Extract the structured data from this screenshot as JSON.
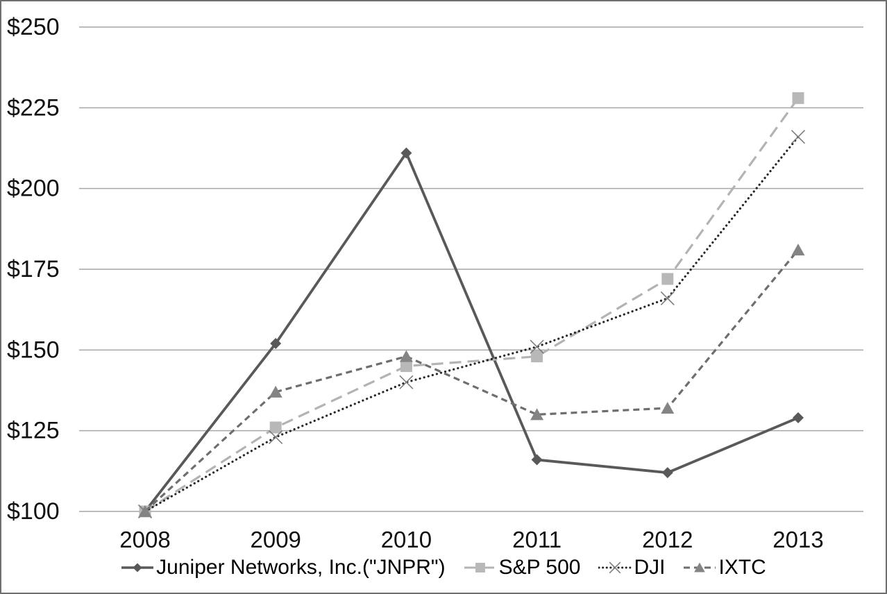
{
  "chart_data": {
    "type": "line",
    "title": "",
    "xlabel": "",
    "ylabel": "",
    "x_categories": [
      "2008",
      "2009",
      "2010",
      "2011",
      "2012",
      "2013"
    ],
    "ylim": [
      100,
      250
    ],
    "y_ticks": [
      100,
      125,
      150,
      175,
      200,
      225,
      250
    ],
    "y_tick_labels": [
      "$100",
      "$125",
      "$150",
      "$175",
      "$200",
      "$225",
      "$250"
    ],
    "grid": true,
    "legend_position": "bottom",
    "series": [
      {
        "name": "Juniper Networks, Inc.(\"JNPR\")",
        "slug": "jnpr",
        "values": [
          100,
          152,
          211,
          116,
          112,
          129
        ],
        "color": "#595959",
        "line_style": "solid",
        "marker": "diamond",
        "marker_color": "#595959"
      },
      {
        "name": "S&P 500",
        "slug": "sp500",
        "values": [
          100,
          126,
          145,
          148,
          172,
          228
        ],
        "color": "#b3b3b3",
        "line_style": "long-dash",
        "marker": "square",
        "marker_color": "#b8b8b8"
      },
      {
        "name": "DJI",
        "slug": "dji",
        "values": [
          100,
          123,
          140,
          151,
          166,
          216
        ],
        "color": "#262626",
        "line_style": "dotted",
        "marker": "x",
        "marker_color": "#7d7d7d"
      },
      {
        "name": "IXTC",
        "slug": "ixtc",
        "values": [
          100,
          137,
          148,
          130,
          132,
          181
        ],
        "color": "#6e6e6e",
        "line_style": "short-dash",
        "marker": "triangle",
        "marker_color": "#848484"
      }
    ]
  },
  "colors": {
    "background": "#ffffff",
    "border": "#6e6e6e",
    "gridline": "#a6a6a6",
    "tick_text": "#111111",
    "legend_text": "#000000"
  }
}
